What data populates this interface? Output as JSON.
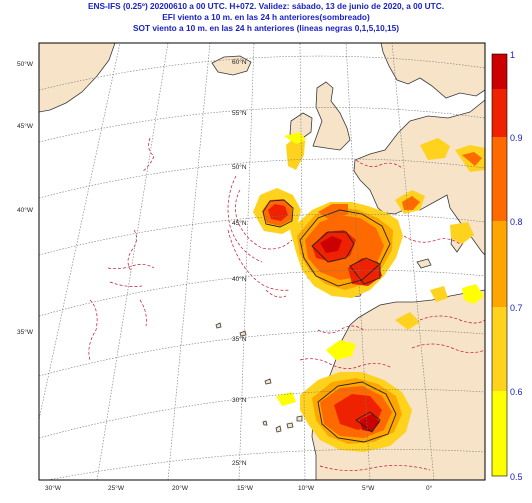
{
  "titles": {
    "line1": "ENS-IFS (0.25º) 20200610 a 00 UTC.  H+072. Validez: sábado, 13 de junio de 2020,  a  00 UTC.",
    "line2": "EFI viento a 10 m. en las 24 h anteriores(sombreado)",
    "line3": "SOT viento a 10 m. en las 24 h anteriores (lineas negras 0,1,5,10,15)"
  },
  "colors": {
    "ocean": "#ffffff",
    "land": "#f6e3c8",
    "coast": "#3a3a3a",
    "grid": "#777777",
    "title": "#1a20c8",
    "contour_red": "#c8102e",
    "efi_levels": [
      "#ffff00",
      "#ffd21e",
      "#ffa500",
      "#ff6a00",
      "#ee2200",
      "#cc0000"
    ]
  },
  "lat_labels_inner": [
    "60°N",
    "55°N",
    "50°N",
    "45°N",
    "40°N",
    "35°N",
    "30°N",
    "25°N"
  ],
  "lat_labels_outer": [
    "50°W",
    "45°W",
    "40°W",
    "35°W"
  ],
  "lon_labels_bottom": [
    "30°W",
    "25°W",
    "20°W",
    "15°W",
    "10°W",
    "5°W",
    "0°"
  ],
  "colorbar": {
    "ticks": [
      "1",
      "0.9",
      "0.8",
      "0.7",
      "0.6",
      "0.5"
    ]
  }
}
